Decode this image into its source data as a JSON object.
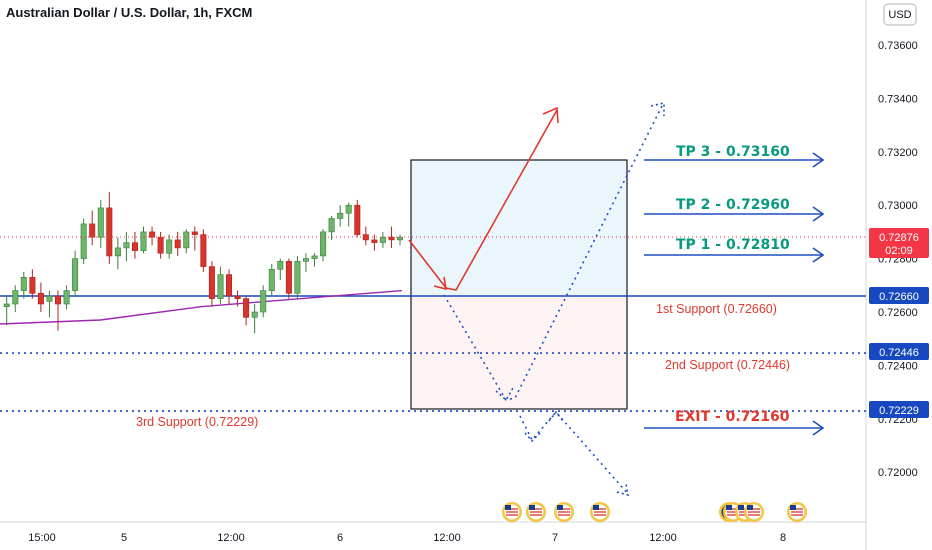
{
  "title": "Australian Dollar / U.S. Dollar, 1h, FXCM",
  "currency_button": "USD",
  "colors": {
    "up": "#26a69a",
    "down": "#d9332b",
    "up_fill": "#6cb56a",
    "support_line": "#1848c0",
    "annotation_blue": "#1f4fc2",
    "arrow_red": "#e0382d",
    "ma": "#9c27b0",
    "current_price": "#f23645",
    "tp_text": "#089981",
    "exit_text": "#e0382d"
  },
  "chart_data": {
    "type": "candlestick",
    "title": "Australian Dollar / U.S. Dollar, 1h, FXCM",
    "symbol": "AUDUSD",
    "timeframe": "1h",
    "source": "FXCM",
    "ylim": [
      0.7188,
      0.7375
    ],
    "price_ticks": [
      "0.73600",
      "0.73400",
      "0.73200",
      "0.73000",
      "0.72800",
      "0.72600",
      "0.72400",
      "0.72200",
      "0.72000"
    ],
    "x_ticks": [
      "15:00",
      "5",
      "12:00",
      "6",
      "12:00",
      "7",
      "12:00",
      "8"
    ],
    "current_price": {
      "value": "0.72876",
      "countdown": "02:09"
    },
    "price_labels": [
      "0.72660",
      "0.72446",
      "0.72229"
    ],
    "candles": [
      {
        "o": 0.7262,
        "h": 0.7266,
        "l": 0.7255,
        "c": 0.7263
      },
      {
        "o": 0.7263,
        "h": 0.727,
        "l": 0.726,
        "c": 0.7268
      },
      {
        "o": 0.7268,
        "h": 0.7275,
        "l": 0.7265,
        "c": 0.7273
      },
      {
        "o": 0.7273,
        "h": 0.7276,
        "l": 0.7265,
        "c": 0.7267
      },
      {
        "o": 0.7267,
        "h": 0.7271,
        "l": 0.726,
        "c": 0.7263
      },
      {
        "o": 0.7264,
        "h": 0.7268,
        "l": 0.7258,
        "c": 0.7266
      },
      {
        "o": 0.7266,
        "h": 0.7268,
        "l": 0.7253,
        "c": 0.7263
      },
      {
        "o": 0.7263,
        "h": 0.727,
        "l": 0.7261,
        "c": 0.7268
      },
      {
        "o": 0.7268,
        "h": 0.7283,
        "l": 0.7266,
        "c": 0.728
      },
      {
        "o": 0.728,
        "h": 0.7295,
        "l": 0.7278,
        "c": 0.7293
      },
      {
        "o": 0.7293,
        "h": 0.7298,
        "l": 0.7285,
        "c": 0.7288
      },
      {
        "o": 0.7288,
        "h": 0.7302,
        "l": 0.7284,
        "c": 0.7299
      },
      {
        "o": 0.7299,
        "h": 0.7305,
        "l": 0.7278,
        "c": 0.7281
      },
      {
        "o": 0.7281,
        "h": 0.7288,
        "l": 0.7276,
        "c": 0.7284
      },
      {
        "o": 0.7284,
        "h": 0.729,
        "l": 0.7279,
        "c": 0.7286
      },
      {
        "o": 0.7286,
        "h": 0.729,
        "l": 0.728,
        "c": 0.7283
      },
      {
        "o": 0.7283,
        "h": 0.7292,
        "l": 0.7282,
        "c": 0.729
      },
      {
        "o": 0.729,
        "h": 0.7292,
        "l": 0.7285,
        "c": 0.7288
      },
      {
        "o": 0.7288,
        "h": 0.729,
        "l": 0.728,
        "c": 0.7282
      },
      {
        "o": 0.7282,
        "h": 0.7289,
        "l": 0.728,
        "c": 0.7287
      },
      {
        "o": 0.7287,
        "h": 0.729,
        "l": 0.7281,
        "c": 0.7284
      },
      {
        "o": 0.7284,
        "h": 0.7291,
        "l": 0.7282,
        "c": 0.729
      },
      {
        "o": 0.729,
        "h": 0.7292,
        "l": 0.7283,
        "c": 0.7289
      },
      {
        "o": 0.7289,
        "h": 0.7291,
        "l": 0.7275,
        "c": 0.7277
      },
      {
        "o": 0.7277,
        "h": 0.7279,
        "l": 0.7262,
        "c": 0.7265
      },
      {
        "o": 0.7265,
        "h": 0.7277,
        "l": 0.7263,
        "c": 0.7274
      },
      {
        "o": 0.7274,
        "h": 0.7276,
        "l": 0.7263,
        "c": 0.7266
      },
      {
        "o": 0.7266,
        "h": 0.7268,
        "l": 0.7262,
        "c": 0.7265
      },
      {
        "o": 0.7265,
        "h": 0.7266,
        "l": 0.7255,
        "c": 0.7258
      },
      {
        "o": 0.7258,
        "h": 0.7263,
        "l": 0.7252,
        "c": 0.726
      },
      {
        "o": 0.726,
        "h": 0.727,
        "l": 0.7258,
        "c": 0.7268
      },
      {
        "o": 0.7268,
        "h": 0.7278,
        "l": 0.7266,
        "c": 0.7276
      },
      {
        "o": 0.7276,
        "h": 0.728,
        "l": 0.7272,
        "c": 0.7279
      },
      {
        "o": 0.7279,
        "h": 0.728,
        "l": 0.7265,
        "c": 0.7267
      },
      {
        "o": 0.7267,
        "h": 0.7281,
        "l": 0.7265,
        "c": 0.7279
      },
      {
        "o": 0.7279,
        "h": 0.7282,
        "l": 0.7275,
        "c": 0.728
      },
      {
        "o": 0.728,
        "h": 0.7282,
        "l": 0.7277,
        "c": 0.7281
      },
      {
        "o": 0.7281,
        "h": 0.7291,
        "l": 0.7279,
        "c": 0.729
      },
      {
        "o": 0.729,
        "h": 0.7296,
        "l": 0.7287,
        "c": 0.7295
      },
      {
        "o": 0.7295,
        "h": 0.73,
        "l": 0.7292,
        "c": 0.7297
      },
      {
        "o": 0.7297,
        "h": 0.7301,
        "l": 0.7292,
        "c": 0.73
      },
      {
        "o": 0.73,
        "h": 0.7302,
        "l": 0.7288,
        "c": 0.7289
      },
      {
        "o": 0.7289,
        "h": 0.7292,
        "l": 0.7285,
        "c": 0.7287
      },
      {
        "o": 0.7287,
        "h": 0.7289,
        "l": 0.7283,
        "c": 0.7286
      },
      {
        "o": 0.7286,
        "h": 0.729,
        "l": 0.7284,
        "c": 0.7288
      },
      {
        "o": 0.7288,
        "h": 0.7292,
        "l": 0.7284,
        "c": 0.7287
      },
      {
        "o": 0.7287,
        "h": 0.7289,
        "l": 0.7285,
        "c": 0.7288
      }
    ],
    "moving_average": [
      0.72555,
      0.7257,
      0.7262,
      0.7265,
      0.7268
    ],
    "horizontal_levels": [
      {
        "value": 0.7266,
        "style": "solid"
      },
      {
        "value": 0.72446,
        "style": "dotted"
      },
      {
        "value": 0.72229,
        "style": "dotted"
      }
    ],
    "position_box": {
      "entry": 0.7266,
      "target": 0.7316,
      "stop": 0.72229
    },
    "annotations": {
      "tp3": "TP 3 - 0.73160",
      "tp2": "TP 2 - 0.72960",
      "tp1": "TP 1 - 0.72810",
      "exit": "EXIT - 0.72160",
      "support1": "1st Support (0.72660)",
      "support2": "2nd Support (0.72446)",
      "support3": "3rd Support (0.72229)"
    },
    "projections": {
      "red_path": [
        [
          0.72815,
          0.7266
        ],
        [
          0.7266,
          0.7336
        ]
      ],
      "dotted_down_up": [
        [
          0.7266,
          0.7224
        ],
        [
          0.7224,
          0.7338
        ]
      ],
      "dotted_exit_down": [
        [
          0.7216,
          0.7194
        ]
      ]
    },
    "event_flags": [
      "US",
      "US",
      "US",
      "US",
      "AU",
      "US",
      "US",
      "US",
      "US",
      "US"
    ]
  }
}
